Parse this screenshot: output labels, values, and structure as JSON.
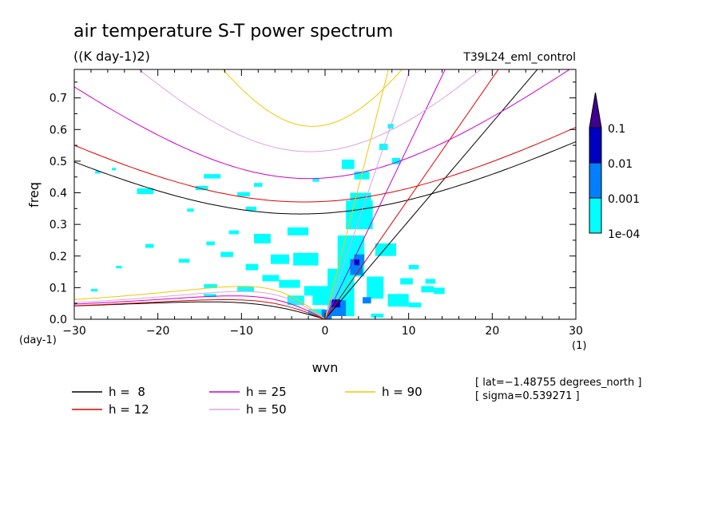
{
  "chart_data": {
    "type": "line",
    "title": "air temperature S-T power spectrum",
    "subtitle": "((K day-1)2)",
    "run_label": "T39L24_eml_control",
    "xlabel": "wvn",
    "ylabel": "freq",
    "x_unit": "(1)",
    "y_unit": "(day-1)",
    "xlim": [
      -30,
      30
    ],
    "ylim": [
      0,
      0.79
    ],
    "x_ticks": [
      {
        "value": -30,
        "label": "−30"
      },
      {
        "value": -20,
        "label": "−20"
      },
      {
        "value": -10,
        "label": "−10"
      },
      {
        "value": 0,
        "label": "0"
      },
      {
        "value": 10,
        "label": "10"
      },
      {
        "value": 20,
        "label": "20"
      },
      {
        "value": 30,
        "label": "30"
      }
    ],
    "y_ticks": [
      {
        "value": 0.0,
        "label": "0.0"
      },
      {
        "value": 0.1,
        "label": "0.1"
      },
      {
        "value": 0.2,
        "label": "0.2"
      },
      {
        "value": 0.3,
        "label": "0.3"
      },
      {
        "value": 0.4,
        "label": "0.4"
      },
      {
        "value": 0.5,
        "label": "0.5"
      },
      {
        "value": 0.6,
        "label": "0.6"
      },
      {
        "value": 0.7,
        "label": "0.7"
      }
    ],
    "series": [
      {
        "name": "h =  8",
        "color": "#000000",
        "kelvin_slope": 0.0311,
        "ig": {
          "min": 0.333,
          "min_x": -3,
          "scale": 24.3
        },
        "rossby": {
          "peak": 0.055,
          "peak_x": -14
        }
      },
      {
        "name": "h = 12",
        "color": "#e00000",
        "kelvin_slope": 0.0381,
        "ig": {
          "min": 0.371,
          "min_x": -2.5,
          "scale": 25.1
        },
        "rossby": {
          "peak": 0.062,
          "peak_x": -12
        }
      },
      {
        "name": "h = 25",
        "color": "#cc00cc",
        "kelvin_slope": 0.055,
        "ig": {
          "min": 0.445,
          "min_x": -2,
          "scale": 21.3
        },
        "rossby": {
          "peak": 0.074,
          "peak_x": -11
        }
      },
      {
        "name": "h = 50",
        "color": "#e0a0e0",
        "kelvin_slope": 0.0778,
        "ig": {
          "min": 0.53,
          "min_x": -1.8,
          "scale": 18.5
        },
        "rossby": {
          "peak": 0.088,
          "peak_x": -10
        }
      },
      {
        "name": "h = 90",
        "color": "#f0c800",
        "kelvin_slope": 0.1043,
        "ig": {
          "min": 0.61,
          "min_x": -1.5,
          "scale": 13
        },
        "rossby": {
          "peak": 0.104,
          "peak_x": -10
        }
      }
    ],
    "legend": {
      "placement": "bottom"
    },
    "colorbar": {
      "placement": "right",
      "levels": [
        {
          "label": "1e-04",
          "color": "#00ffff"
        },
        {
          "label": "0.001",
          "color": "#0080ff"
        },
        {
          "label": "0.01",
          "color": "#0000c0"
        },
        {
          "label": "0.1",
          "color": "#400090"
        }
      ]
    },
    "shaded_cells": [
      {
        "x": -27.5,
        "y": 0.465,
        "w": 0.6,
        "h": 0.008,
        "level": 0
      },
      {
        "x": -25.5,
        "y": 0.475,
        "w": 0.5,
        "h": 0.008,
        "level": 0
      },
      {
        "x": -22.5,
        "y": 0.405,
        "w": 2,
        "h": 0.018,
        "level": 0
      },
      {
        "x": -14.5,
        "y": 0.452,
        "w": 2,
        "h": 0.014,
        "level": 0
      },
      {
        "x": -15.5,
        "y": 0.415,
        "w": 1.5,
        "h": 0.014,
        "level": 0
      },
      {
        "x": -10.5,
        "y": 0.395,
        "w": 1.5,
        "h": 0.014,
        "level": 0
      },
      {
        "x": -8.5,
        "y": 0.425,
        "w": 1,
        "h": 0.012,
        "level": 0
      },
      {
        "x": -16.5,
        "y": 0.345,
        "w": 0.8,
        "h": 0.01,
        "level": 0
      },
      {
        "x": -1.5,
        "y": 0.44,
        "w": 0.8,
        "h": 0.01,
        "level": 0
      },
      {
        "x": -9.5,
        "y": 0.35,
        "w": 1.3,
        "h": 0.012,
        "level": 0
      },
      {
        "x": -11.5,
        "y": 0.275,
        "w": 1.2,
        "h": 0.012,
        "level": 0
      },
      {
        "x": -14.2,
        "y": 0.24,
        "w": 1,
        "h": 0.012,
        "level": 0
      },
      {
        "x": -21.5,
        "y": 0.232,
        "w": 1,
        "h": 0.012,
        "level": 0
      },
      {
        "x": -12.5,
        "y": 0.205,
        "w": 1.5,
        "h": 0.016,
        "level": 0
      },
      {
        "x": -8.5,
        "y": 0.255,
        "w": 2,
        "h": 0.03,
        "level": 0
      },
      {
        "x": -4.5,
        "y": 0.278,
        "w": 2.5,
        "h": 0.025,
        "level": 0
      },
      {
        "x": -6.5,
        "y": 0.19,
        "w": 2.2,
        "h": 0.03,
        "level": 0
      },
      {
        "x": -9.5,
        "y": 0.165,
        "w": 1.5,
        "h": 0.02,
        "level": 0
      },
      {
        "x": -3.8,
        "y": 0.19,
        "w": 3,
        "h": 0.04,
        "level": 0
      },
      {
        "x": -17.5,
        "y": 0.185,
        "w": 1.3,
        "h": 0.012,
        "level": 0
      },
      {
        "x": -25,
        "y": 0.165,
        "w": 0.7,
        "h": 0.008,
        "level": 0
      },
      {
        "x": -28,
        "y": 0.092,
        "w": 0.8,
        "h": 0.008,
        "level": 0
      },
      {
        "x": -14.5,
        "y": 0.105,
        "w": 1.6,
        "h": 0.012,
        "level": 0
      },
      {
        "x": -10.5,
        "y": 0.095,
        "w": 2,
        "h": 0.016,
        "level": 0
      },
      {
        "x": -5.5,
        "y": 0.112,
        "w": 2.5,
        "h": 0.025,
        "level": 0
      },
      {
        "x": -2.5,
        "y": 0.09,
        "w": 1.5,
        "h": 0.03,
        "level": 0
      },
      {
        "x": -7.5,
        "y": 0.13,
        "w": 2,
        "h": 0.02,
        "level": 0
      },
      {
        "x": -4.5,
        "y": 0.06,
        "w": 2,
        "h": 0.03,
        "level": 0
      },
      {
        "x": -14.5,
        "y": 0.075,
        "w": 1.5,
        "h": 0.01,
        "level": 0
      },
      {
        "x": -2,
        "y": 0.022,
        "w": 2,
        "h": 0.02,
        "level": 0
      },
      {
        "x": -1.5,
        "y": 0.075,
        "w": 3,
        "h": 0.06,
        "level": 0
      },
      {
        "x": 0.3,
        "y": 0.085,
        "w": 3.2,
        "h": 0.15,
        "level": 0
      },
      {
        "x": 1.5,
        "y": 0.2,
        "w": 3.2,
        "h": 0.13,
        "level": 0
      },
      {
        "x": 2.5,
        "y": 0.33,
        "w": 3.2,
        "h": 0.09,
        "level": 0
      },
      {
        "x": 3,
        "y": 0.36,
        "w": 2.5,
        "h": 0.08,
        "level": 0
      },
      {
        "x": 2,
        "y": 0.49,
        "w": 1.5,
        "h": 0.03,
        "level": 0
      },
      {
        "x": 3.5,
        "y": 0.455,
        "w": 1.8,
        "h": 0.025,
        "level": 0
      },
      {
        "x": 6.5,
        "y": 0.545,
        "w": 1,
        "h": 0.02,
        "level": 0
      },
      {
        "x": 7.5,
        "y": 0.61,
        "w": 0.7,
        "h": 0.015,
        "level": 0
      },
      {
        "x": 8,
        "y": 0.5,
        "w": 1,
        "h": 0.02,
        "level": 0
      },
      {
        "x": 6,
        "y": 0.22,
        "w": 2.5,
        "h": 0.04,
        "level": 0
      },
      {
        "x": 5,
        "y": 0.1,
        "w": 2,
        "h": 0.07,
        "level": 0
      },
      {
        "x": 7.5,
        "y": 0.06,
        "w": 2.5,
        "h": 0.04,
        "level": 0
      },
      {
        "x": 9,
        "y": 0.12,
        "w": 1.5,
        "h": 0.02,
        "level": 0
      },
      {
        "x": 11.5,
        "y": 0.095,
        "w": 1.5,
        "h": 0.02,
        "level": 0
      },
      {
        "x": 13,
        "y": 0.09,
        "w": 1.3,
        "h": 0.02,
        "level": 0
      },
      {
        "x": 12,
        "y": 0.12,
        "w": 1.2,
        "h": 0.015,
        "level": 0
      },
      {
        "x": 10,
        "y": 0.165,
        "w": 1.2,
        "h": 0.014,
        "level": 0
      },
      {
        "x": 5.5,
        "y": 0.012,
        "w": 1.5,
        "h": 0.012,
        "level": 0
      },
      {
        "x": 10,
        "y": 0.045,
        "w": 1.5,
        "h": 0.015,
        "level": 0
      },
      {
        "x": -0.4,
        "y": 0.015,
        "w": 1.2,
        "h": 0.03,
        "level": 1
      },
      {
        "x": 0.5,
        "y": 0.035,
        "w": 2,
        "h": 0.05,
        "level": 1
      },
      {
        "x": 3,
        "y": 0.165,
        "w": 1.5,
        "h": 0.05,
        "level": 1
      },
      {
        "x": 3.5,
        "y": 0.19,
        "w": 1.2,
        "h": 0.03,
        "level": 1
      },
      {
        "x": 4.5,
        "y": 0.06,
        "w": 1,
        "h": 0.02,
        "level": 1
      },
      {
        "x": 0.8,
        "y": 0.05,
        "w": 1,
        "h": 0.025,
        "level": 2
      },
      {
        "x": 3.5,
        "y": 0.18,
        "w": 0.6,
        "h": 0.018,
        "level": 2
      }
    ]
  },
  "info": {
    "lat": "[ lat=−1.48755 degrees_north ]",
    "sigma": "[ sigma=0.539271 ]"
  }
}
